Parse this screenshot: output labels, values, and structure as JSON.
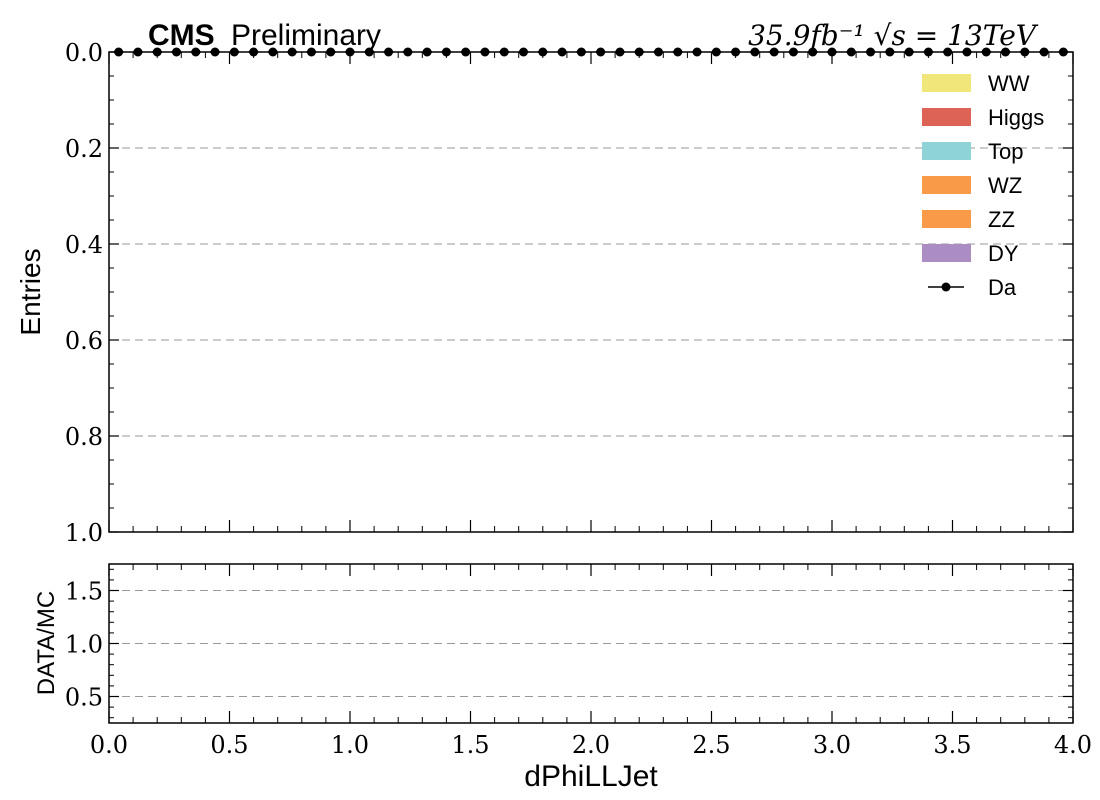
{
  "header": {
    "cms_label": "CMS",
    "preliminary_label": "Preliminary",
    "lumi_label": "35.9fb⁻¹ √s = 13TeV"
  },
  "legend": {
    "items": [
      {
        "label": "WW",
        "color": "#f0e67a",
        "kind": "patch"
      },
      {
        "label": "Higgs",
        "color": "#dc6356",
        "kind": "patch"
      },
      {
        "label": "Top",
        "color": "#8ed4d6",
        "kind": "patch"
      },
      {
        "label": "WZ",
        "color": "#f99a48",
        "kind": "patch"
      },
      {
        "label": "ZZ",
        "color": "#f99a48",
        "kind": "patch"
      },
      {
        "label": "DY",
        "color": "#ab8dc4",
        "kind": "patch"
      },
      {
        "label": "Da",
        "color": "#000000",
        "kind": "marker"
      }
    ]
  },
  "chart_data": [
    {
      "type": "scatter",
      "panel": "main",
      "ylabel": "Entries",
      "xlim": [
        0.0,
        4.0
      ],
      "ylim": [
        0.0,
        1.0
      ],
      "y_inverted": true,
      "yticks": [
        0.0,
        0.2,
        0.4,
        0.6,
        0.8,
        1.0
      ],
      "ytick_labels": [
        "0.0",
        "0.2",
        "0.4",
        "0.6",
        "0.8",
        "1.0"
      ],
      "grid": "horizontal-dashed",
      "legend_position": "top-right",
      "series": [
        {
          "name": "Da",
          "color": "#000000",
          "x": [
            0.04,
            0.12,
            0.2,
            0.28,
            0.36,
            0.44,
            0.52,
            0.6,
            0.68,
            0.76,
            0.84,
            0.92,
            1.0,
            1.08,
            1.16,
            1.24,
            1.32,
            1.4,
            1.48,
            1.56,
            1.64,
            1.72,
            1.8,
            1.88,
            1.96,
            2.04,
            2.12,
            2.2,
            2.28,
            2.36,
            2.44,
            2.52,
            2.6,
            2.68,
            2.76,
            2.84,
            2.92,
            3.0,
            3.08,
            3.16,
            3.24,
            3.32,
            3.4,
            3.48,
            3.56,
            3.64,
            3.72,
            3.8,
            3.88,
            3.96
          ],
          "y": [
            0,
            0,
            0,
            0,
            0,
            0,
            0,
            0,
            0,
            0,
            0,
            0,
            0,
            0,
            0,
            0,
            0,
            0,
            0,
            0,
            0,
            0,
            0,
            0,
            0,
            0,
            0,
            0,
            0,
            0,
            0,
            0,
            0,
            0,
            0,
            0,
            0,
            0,
            0,
            0,
            0,
            0,
            0,
            0,
            0,
            0,
            0,
            0,
            0,
            0
          ]
        }
      ]
    },
    {
      "type": "scatter",
      "panel": "ratio",
      "xlabel": "dPhiLLJet",
      "ylabel": "DATA/MC",
      "xlim": [
        0.0,
        4.0
      ],
      "ylim": [
        0.25,
        1.75
      ],
      "xticks": [
        0.0,
        0.5,
        1.0,
        1.5,
        2.0,
        2.5,
        3.0,
        3.5,
        4.0
      ],
      "xtick_labels": [
        "0.0",
        "0.5",
        "1.0",
        "1.5",
        "2.0",
        "2.5",
        "3.0",
        "3.5",
        "4.0"
      ],
      "yticks": [
        0.5,
        1.0,
        1.5
      ],
      "ytick_labels": [
        "0.5",
        "1.0",
        "1.5"
      ],
      "grid": "horizontal-dashed",
      "series": []
    }
  ]
}
